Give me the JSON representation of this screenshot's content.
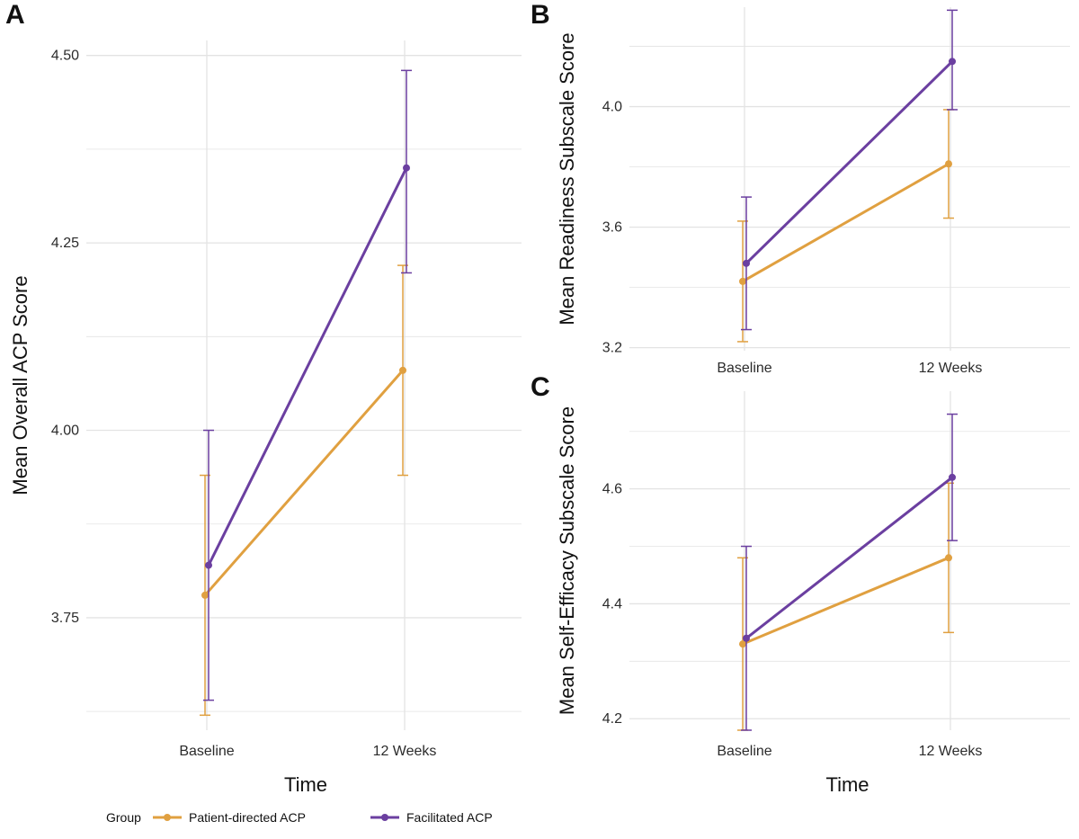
{
  "chart_data": [
    {
      "panel": "A",
      "type": "line",
      "categories": [
        "Baseline",
        "12 Weeks"
      ],
      "xlabel": "Time",
      "ylabel": "Mean Overall ACP Score",
      "ylim": [
        3.6,
        4.52
      ],
      "yticks": [
        3.75,
        4.0,
        4.25,
        4.5
      ],
      "ytick_labels": [
        "3.75",
        "4.00",
        "4.25",
        "4.50"
      ],
      "grid": true,
      "series": [
        {
          "name": "Patient-directed ACP",
          "values": [
            3.78,
            4.08
          ],
          "lower": [
            3.62,
            3.94
          ],
          "upper": [
            3.94,
            4.22
          ]
        },
        {
          "name": "Facilitated ACP",
          "values": [
            3.82,
            4.35
          ],
          "lower": [
            3.64,
            4.21
          ],
          "upper": [
            4.0,
            4.48
          ]
        }
      ]
    },
    {
      "panel": "B",
      "type": "line",
      "categories": [
        "Baseline",
        "12 Weeks"
      ],
      "xlabel": "",
      "ylabel": "Mean Readiness Subscale Score",
      "ylim": [
        3.19,
        4.33
      ],
      "yticks": [
        3.2,
        3.6,
        4.0
      ],
      "ytick_labels": [
        "3.2",
        "3.6",
        "4.0"
      ],
      "grid": true,
      "series": [
        {
          "name": "Patient-directed ACP",
          "values": [
            3.42,
            3.81
          ],
          "lower": [
            3.22,
            3.63
          ],
          "upper": [
            3.62,
            3.99
          ]
        },
        {
          "name": "Facilitated ACP",
          "values": [
            3.48,
            4.15
          ],
          "lower": [
            3.26,
            3.99
          ],
          "upper": [
            3.7,
            4.32
          ]
        }
      ]
    },
    {
      "panel": "C",
      "type": "line",
      "categories": [
        "Baseline",
        "12 Weeks"
      ],
      "xlabel": "Time",
      "ylabel": "Mean Self-Efficacy Subscale Score",
      "ylim": [
        4.18,
        4.77
      ],
      "yticks": [
        4.2,
        4.4,
        4.6
      ],
      "ytick_labels": [
        "4.2",
        "4.4",
        "4.6"
      ],
      "grid": true,
      "series": [
        {
          "name": "Patient-directed ACP",
          "values": [
            4.33,
            4.48
          ],
          "lower": [
            4.18,
            4.35
          ],
          "upper": [
            4.48,
            4.61
          ]
        },
        {
          "name": "Facilitated ACP",
          "values": [
            4.34,
            4.62
          ],
          "lower": [
            4.18,
            4.51
          ],
          "upper": [
            4.5,
            4.73
          ]
        }
      ]
    }
  ],
  "legend": {
    "title": "Group",
    "items": [
      {
        "label": "Patient-directed ACP",
        "color": "#E0A040"
      },
      {
        "label": "Facilitated ACP",
        "color": "#6B3FA0"
      }
    ]
  },
  "colors": {
    "Patient-directed ACP": "#E0A040",
    "Facilitated ACP": "#6B3FA0",
    "grid": "#E3E3E3"
  }
}
